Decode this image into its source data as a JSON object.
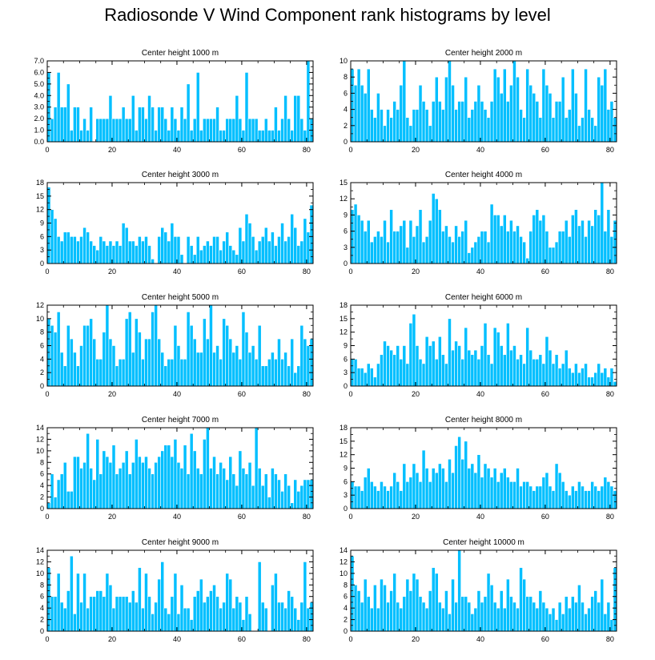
{
  "title": "Radiosonde V Wind Component rank histograms by level",
  "colors": {
    "bar": "#00bfff",
    "bar_edge": "#ffffff",
    "axis": "#000000"
  },
  "chart_data": [
    {
      "type": "bar",
      "title": "Center height 1000 m",
      "ylim": [
        0,
        7
      ],
      "yticks": [
        0,
        1,
        2,
        3,
        4,
        5,
        6,
        7
      ],
      "ytick_labels": [
        "0.0",
        "1.0",
        "2.0",
        "3.0",
        "4.0",
        "5.0",
        "6.0",
        "7.0"
      ],
      "xlim": [
        0,
        82
      ],
      "xticks": [
        0,
        20,
        40,
        60,
        80
      ],
      "xtick_labels": [
        "0",
        "20",
        "40",
        "60",
        "80"
      ],
      "values": [
        6,
        2,
        3,
        6,
        3,
        3,
        5,
        1,
        3,
        3,
        1,
        2,
        1,
        3,
        0,
        2,
        2,
        2,
        2,
        4,
        2,
        2,
        2,
        3,
        2,
        2,
        4,
        1,
        3,
        3,
        2,
        4,
        3,
        1,
        3,
        3,
        2,
        1,
        3,
        2,
        1,
        3,
        2,
        5,
        1,
        2,
        6,
        1,
        2,
        2,
        2,
        2,
        3,
        1,
        1,
        2,
        2,
        2,
        4,
        2,
        1,
        6,
        2,
        2,
        2,
        1,
        1,
        2,
        1,
        1,
        3,
        1,
        2,
        4,
        2,
        1,
        4,
        4,
        2,
        1,
        7,
        2
      ]
    },
    {
      "type": "bar",
      "title": "Center height 2000 m",
      "ylim": [
        0,
        10
      ],
      "yticks": [
        0,
        2,
        4,
        6,
        8,
        10
      ],
      "ytick_labels": [
        "0",
        "2",
        "4",
        "6",
        "8",
        "10"
      ],
      "xlim": [
        0,
        82
      ],
      "xticks": [
        0,
        20,
        40,
        60,
        80
      ],
      "xtick_labels": [
        "0",
        "20",
        "40",
        "60",
        "80"
      ],
      "values": [
        9,
        7,
        9,
        7,
        6,
        9,
        4,
        3,
        6,
        4,
        2,
        4,
        3,
        5,
        4,
        7,
        10,
        3,
        2,
        4,
        4,
        7,
        5,
        4,
        2,
        5,
        8,
        5,
        4,
        8,
        10,
        7,
        4,
        5,
        5,
        8,
        3,
        4,
        5,
        7,
        5,
        4,
        3,
        5,
        9,
        8,
        6,
        9,
        5,
        7,
        10,
        8,
        4,
        3,
        9,
        7,
        6,
        5,
        3,
        9,
        7,
        6,
        3,
        5,
        5,
        8,
        3,
        4,
        9,
        6,
        2,
        3,
        9,
        4,
        3,
        2,
        8,
        7,
        9,
        4,
        5,
        3
      ]
    },
    {
      "type": "bar",
      "title": "Center height 3000 m",
      "ylim": [
        0,
        18
      ],
      "yticks": [
        0,
        3,
        6,
        9,
        12,
        15,
        18
      ],
      "ytick_labels": [
        "0",
        "3",
        "6",
        "9",
        "12",
        "15",
        "18"
      ],
      "xlim": [
        0,
        82
      ],
      "xticks": [
        0,
        20,
        40,
        60,
        80
      ],
      "xtick_labels": [
        "0",
        "20",
        "40",
        "60",
        "80"
      ],
      "values": [
        17,
        12,
        10,
        6,
        5,
        7,
        7,
        6,
        6,
        5,
        6,
        8,
        7,
        5,
        4,
        3,
        6,
        5,
        4,
        5,
        4,
        5,
        4,
        9,
        8,
        5,
        5,
        4,
        6,
        5,
        6,
        4,
        1,
        0,
        6,
        8,
        7,
        5,
        9,
        6,
        6,
        2,
        0,
        6,
        4,
        2,
        6,
        3,
        4,
        5,
        4,
        6,
        6,
        3,
        5,
        7,
        4,
        3,
        2,
        8,
        5,
        11,
        9,
        6,
        3,
        5,
        6,
        8,
        5,
        7,
        4,
        6,
        9,
        5,
        6,
        11,
        8,
        4,
        5,
        10,
        7,
        13
      ]
    },
    {
      "type": "bar",
      "title": "Center height 4000 m",
      "ylim": [
        0,
        15
      ],
      "yticks": [
        0,
        3,
        6,
        9,
        12,
        15
      ],
      "ytick_labels": [
        "0",
        "3",
        "6",
        "9",
        "12",
        "15"
      ],
      "xlim": [
        0,
        82
      ],
      "xticks": [
        0,
        20,
        40,
        60,
        80
      ],
      "xtick_labels": [
        "0",
        "20",
        "40",
        "60",
        "80"
      ],
      "values": [
        10,
        11,
        9,
        8,
        6,
        8,
        4,
        5,
        6,
        5,
        8,
        4,
        10,
        6,
        6,
        7,
        8,
        3,
        8,
        5,
        7,
        10,
        4,
        5,
        8,
        13,
        12,
        10,
        6,
        7,
        5,
        4,
        7,
        5,
        6,
        8,
        2,
        3,
        4,
        5,
        6,
        6,
        4,
        11,
        9,
        9,
        7,
        9,
        6,
        8,
        6,
        7,
        5,
        4,
        1,
        6,
        9,
        10,
        8,
        9,
        6,
        3,
        3,
        4,
        6,
        6,
        8,
        5,
        9,
        10,
        7,
        8,
        5,
        8,
        7,
        10,
        9,
        15,
        6,
        10,
        5,
        8
      ]
    },
    {
      "type": "bar",
      "title": "Center height 5000 m",
      "ylim": [
        0,
        12
      ],
      "yticks": [
        0,
        2,
        4,
        6,
        8,
        10,
        12
      ],
      "ytick_labels": [
        "0",
        "2",
        "4",
        "6",
        "8",
        "10",
        "12"
      ],
      "xlim": [
        0,
        82
      ],
      "xticks": [
        0,
        20,
        40,
        60,
        80
      ],
      "xtick_labels": [
        "0",
        "20",
        "40",
        "60",
        "80"
      ],
      "values": [
        10,
        9,
        8,
        11,
        5,
        3,
        9,
        7,
        5,
        3,
        6,
        9,
        9,
        10,
        7,
        4,
        4,
        8,
        12,
        7,
        6,
        3,
        4,
        4,
        10,
        11,
        5,
        10,
        8,
        4,
        7,
        7,
        11,
        12,
        7,
        5,
        3,
        4,
        4,
        9,
        6,
        4,
        4,
        11,
        9,
        7,
        5,
        5,
        10,
        7,
        12,
        5,
        6,
        4,
        10,
        9,
        7,
        5,
        6,
        4,
        11,
        8,
        5,
        6,
        4,
        9,
        3,
        3,
        4,
        5,
        4,
        7,
        4,
        5,
        3,
        7,
        2,
        3,
        9,
        7,
        6,
        7
      ]
    },
    {
      "type": "bar",
      "title": "Center height 6000 m",
      "ylim": [
        0,
        18
      ],
      "yticks": [
        0,
        3,
        6,
        9,
        12,
        15,
        18
      ],
      "ytick_labels": [
        "0",
        "3",
        "6",
        "9",
        "12",
        "15",
        "18"
      ],
      "xlim": [
        0,
        82
      ],
      "xticks": [
        0,
        20,
        40,
        60,
        80
      ],
      "xtick_labels": [
        "0",
        "20",
        "40",
        "60",
        "80"
      ],
      "values": [
        6,
        6,
        4,
        4,
        3,
        5,
        4,
        2,
        5,
        7,
        10,
        9,
        8,
        7,
        9,
        6,
        9,
        5,
        14,
        16,
        9,
        6,
        5,
        11,
        9,
        10,
        6,
        11,
        7,
        5,
        15,
        8,
        10,
        9,
        6,
        13,
        8,
        7,
        8,
        6,
        9,
        14,
        7,
        5,
        13,
        12,
        9,
        7,
        14,
        8,
        9,
        6,
        7,
        5,
        13,
        8,
        6,
        6,
        7,
        5,
        11,
        8,
        5,
        7,
        4,
        5,
        8,
        4,
        3,
        5,
        3,
        4,
        5,
        2,
        2,
        3,
        5,
        3,
        4,
        2,
        4,
        1
      ]
    },
    {
      "type": "bar",
      "title": "Center height 7000 m",
      "ylim": [
        0,
        14
      ],
      "yticks": [
        0,
        2,
        4,
        6,
        8,
        10,
        12,
        14
      ],
      "ytick_labels": [
        "0",
        "2",
        "4",
        "6",
        "8",
        "10",
        "12",
        "14"
      ],
      "xlim": [
        0,
        82
      ],
      "xticks": [
        0,
        20,
        40,
        60,
        80
      ],
      "xtick_labels": [
        "0",
        "20",
        "40",
        "60",
        "80"
      ],
      "values": [
        1,
        6,
        2,
        5,
        6,
        8,
        3,
        3,
        9,
        9,
        7,
        8,
        13,
        7,
        5,
        12,
        6,
        10,
        9,
        8,
        11,
        6,
        7,
        8,
        10,
        6,
        8,
        12,
        9,
        8,
        9,
        7,
        6,
        8,
        9,
        10,
        11,
        11,
        9,
        12,
        8,
        7,
        11,
        6,
        13,
        10,
        7,
        6,
        12,
        14,
        7,
        9,
        6,
        8,
        7,
        5,
        9,
        6,
        4,
        10,
        7,
        6,
        8,
        4,
        14,
        7,
        4,
        6,
        2,
        7,
        6,
        5,
        3,
        6,
        4,
        1,
        5,
        3,
        4,
        5,
        5,
        5
      ]
    },
    {
      "type": "bar",
      "title": "Center height 8000 m",
      "ylim": [
        0,
        18
      ],
      "yticks": [
        0,
        3,
        6,
        9,
        12,
        15,
        18
      ],
      "ytick_labels": [
        "0",
        "3",
        "6",
        "9",
        "12",
        "15",
        "18"
      ],
      "xlim": [
        0,
        82
      ],
      "xticks": [
        0,
        20,
        40,
        60,
        80
      ],
      "xtick_labels": [
        "0",
        "20",
        "40",
        "60",
        "80"
      ],
      "values": [
        6,
        5,
        5,
        4,
        7,
        9,
        6,
        5,
        4,
        6,
        5,
        4,
        5,
        8,
        6,
        4,
        10,
        6,
        7,
        10,
        8,
        6,
        13,
        9,
        6,
        9,
        8,
        10,
        9,
        6,
        11,
        8,
        14,
        16,
        11,
        15,
        9,
        10,
        8,
        12,
        7,
        10,
        9,
        7,
        9,
        6,
        8,
        9,
        7,
        6,
        6,
        9,
        5,
        6,
        6,
        5,
        4,
        5,
        5,
        7,
        8,
        5,
        4,
        10,
        8,
        6,
        4,
        3,
        5,
        4,
        6,
        5,
        4,
        4,
        6,
        5,
        4,
        5,
        7,
        6,
        5,
        4
      ]
    },
    {
      "type": "bar",
      "title": "Center height 9000 m",
      "ylim": [
        0,
        14
      ],
      "yticks": [
        0,
        2,
        4,
        6,
        8,
        10,
        12,
        14
      ],
      "ytick_labels": [
        "0",
        "2",
        "4",
        "6",
        "8",
        "10",
        "12",
        "14"
      ],
      "xlim": [
        0,
        82
      ],
      "xticks": [
        0,
        20,
        40,
        60,
        80
      ],
      "xtick_labels": [
        "0",
        "20",
        "40",
        "60",
        "80"
      ],
      "values": [
        11,
        6,
        6,
        10,
        5,
        4,
        7,
        13,
        3,
        10,
        5,
        10,
        4,
        6,
        6,
        7,
        7,
        6,
        10,
        8,
        4,
        6,
        6,
        6,
        6,
        5,
        7,
        5,
        11,
        4,
        10,
        6,
        3,
        5,
        9,
        12,
        4,
        3,
        6,
        10,
        3,
        8,
        4,
        4,
        2,
        6,
        7,
        9,
        5,
        6,
        7,
        8,
        6,
        4,
        5,
        10,
        9,
        4,
        6,
        5,
        2,
        6,
        3,
        0,
        0,
        12,
        5,
        4,
        0,
        8,
        10,
        5,
        5,
        4,
        7,
        6,
        4,
        2,
        5,
        12,
        4,
        5
      ]
    },
    {
      "type": "bar",
      "title": "Center height 10000 m",
      "ylim": [
        0,
        14
      ],
      "yticks": [
        0,
        2,
        4,
        6,
        8,
        10,
        12,
        14
      ],
      "ytick_labels": [
        "0",
        "2",
        "4",
        "6",
        "8",
        "10",
        "12",
        "14"
      ],
      "xlim": [
        0,
        82
      ],
      "xticks": [
        0,
        20,
        40,
        60,
        80
      ],
      "xtick_labels": [
        "0",
        "20",
        "40",
        "60",
        "80"
      ],
      "values": [
        13,
        8,
        7,
        5,
        9,
        6,
        4,
        8,
        4,
        9,
        8,
        5,
        7,
        10,
        5,
        4,
        6,
        9,
        7,
        10,
        9,
        6,
        5,
        4,
        7,
        11,
        10,
        5,
        4,
        7,
        3,
        9,
        5,
        14,
        6,
        6,
        5,
        3,
        4,
        7,
        5,
        6,
        10,
        8,
        5,
        4,
        7,
        4,
        9,
        6,
        5,
        4,
        11,
        9,
        6,
        6,
        5,
        4,
        7,
        5,
        4,
        3,
        4,
        2,
        5,
        3,
        6,
        4,
        6,
        5,
        8,
        5,
        3,
        4,
        6,
        7,
        5,
        9,
        3,
        5,
        2,
        11
      ]
    }
  ]
}
